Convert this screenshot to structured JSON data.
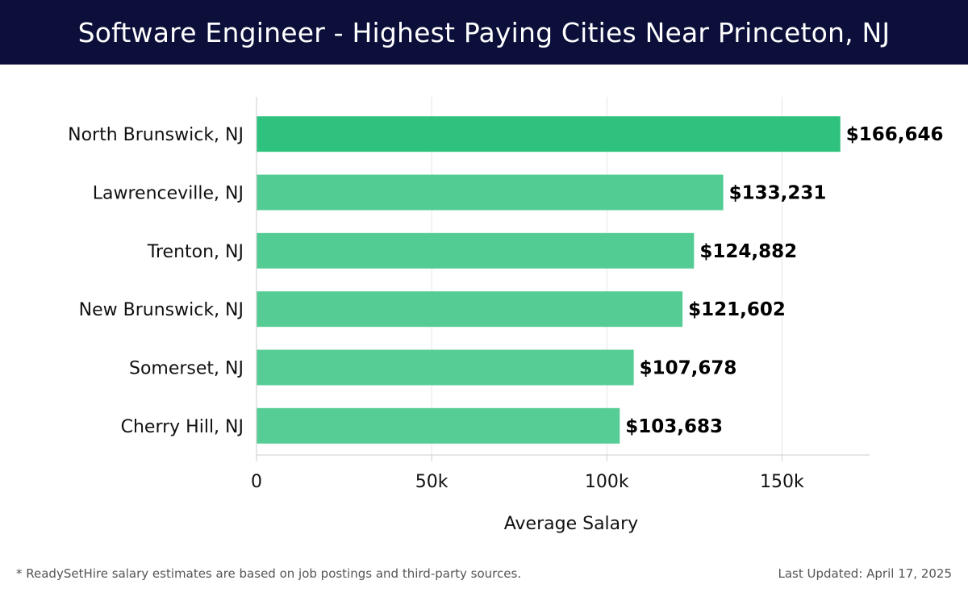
{
  "header": {
    "title": "Software Engineer - Highest Paying Cities Near Princeton, NJ"
  },
  "chart_data": {
    "type": "bar",
    "orientation": "horizontal",
    "categories": [
      "North Brunswick, NJ",
      "Lawrenceville, NJ",
      "Trenton, NJ",
      "New Brunswick, NJ",
      "Somerset, NJ",
      "Cherry Hill, NJ"
    ],
    "values": [
      166646,
      133231,
      124882,
      121602,
      107678,
      103683
    ],
    "value_labels": [
      "$166,646",
      "$133,231",
      "$124,882",
      "$121,602",
      "$107,678",
      "$103,683"
    ],
    "xlabel": "Average Salary",
    "ylabel": "",
    "xlim": [
      0,
      175000
    ],
    "x_ticks": [
      0,
      50000,
      100000,
      150000
    ],
    "x_tick_labels": [
      "0",
      "50k",
      "100k",
      "150k"
    ],
    "grid": true,
    "colors": {
      "top_bar": "#2ec27e",
      "bar": "#4fcb91",
      "grid": "#e6e6e6",
      "axis": "#cccccc"
    }
  },
  "footer": {
    "note": "* ReadySetHire salary estimates are based on job postings and third-party sources.",
    "last_updated": "Last Updated: April 17, 2025"
  }
}
